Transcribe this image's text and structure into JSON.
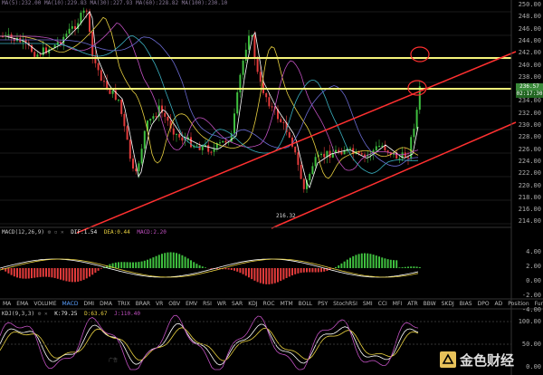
{
  "top_bar": {
    "ma_text": "MA(5):232.00   MA(10):229.83   MA(30):227.93   MA(60):228.82   MA(100):230.10"
  },
  "price_axis": [
    "250.00",
    "248.00",
    "246.00",
    "244.00",
    "242.00",
    "240.00",
    "238.00",
    "236.00",
    "234.00",
    "232.00",
    "230.00",
    "228.00",
    "226.00",
    "224.00",
    "222.00",
    "220.00",
    "218.00",
    "216.00",
    "214.00"
  ],
  "price_tags": {
    "last_price": "236.57",
    "countdown": "02:17:30"
  },
  "low_label": "216.32",
  "macd": {
    "title": "MACD(12,26,9)",
    "dif": "DIF:1.54",
    "dea": "DEA:0.44",
    "macd": "MACD:2.20",
    "axis": [
      "4.00",
      "2.00",
      "0.00",
      "-2.00",
      "-4.00"
    ]
  },
  "indicator_tabs": [
    "MA",
    "EMA",
    "VOLUME",
    "MACD",
    "DMI",
    "DMA",
    "TRIX",
    "BRAR",
    "VR",
    "OBV",
    "EMV",
    "RSI",
    "WR",
    "SAR",
    "KDJ",
    "ROC",
    "MTM",
    "BOLL",
    "PSY",
    "StochRSI",
    "SMI",
    "CCI",
    "MFI",
    "ATR",
    "BBW",
    "SKDJ",
    "BIAS",
    "DPO",
    "AD",
    "Position",
    "Fundflow"
  ],
  "active_tab": "MACD",
  "kdj": {
    "title": "KDJ(9,3,3)",
    "k": "K:79.25",
    "d": "D:63.67",
    "j": "J:110.40",
    "axis": [
      "100.00",
      "50.00",
      "0.00"
    ]
  },
  "ad_text": "广告",
  "logo_text": "金色财经",
  "colors": {
    "bull": "#3fbf3f",
    "bear": "#e23b3b",
    "trend": "#ff3030",
    "level": "#f5f37a"
  }
}
